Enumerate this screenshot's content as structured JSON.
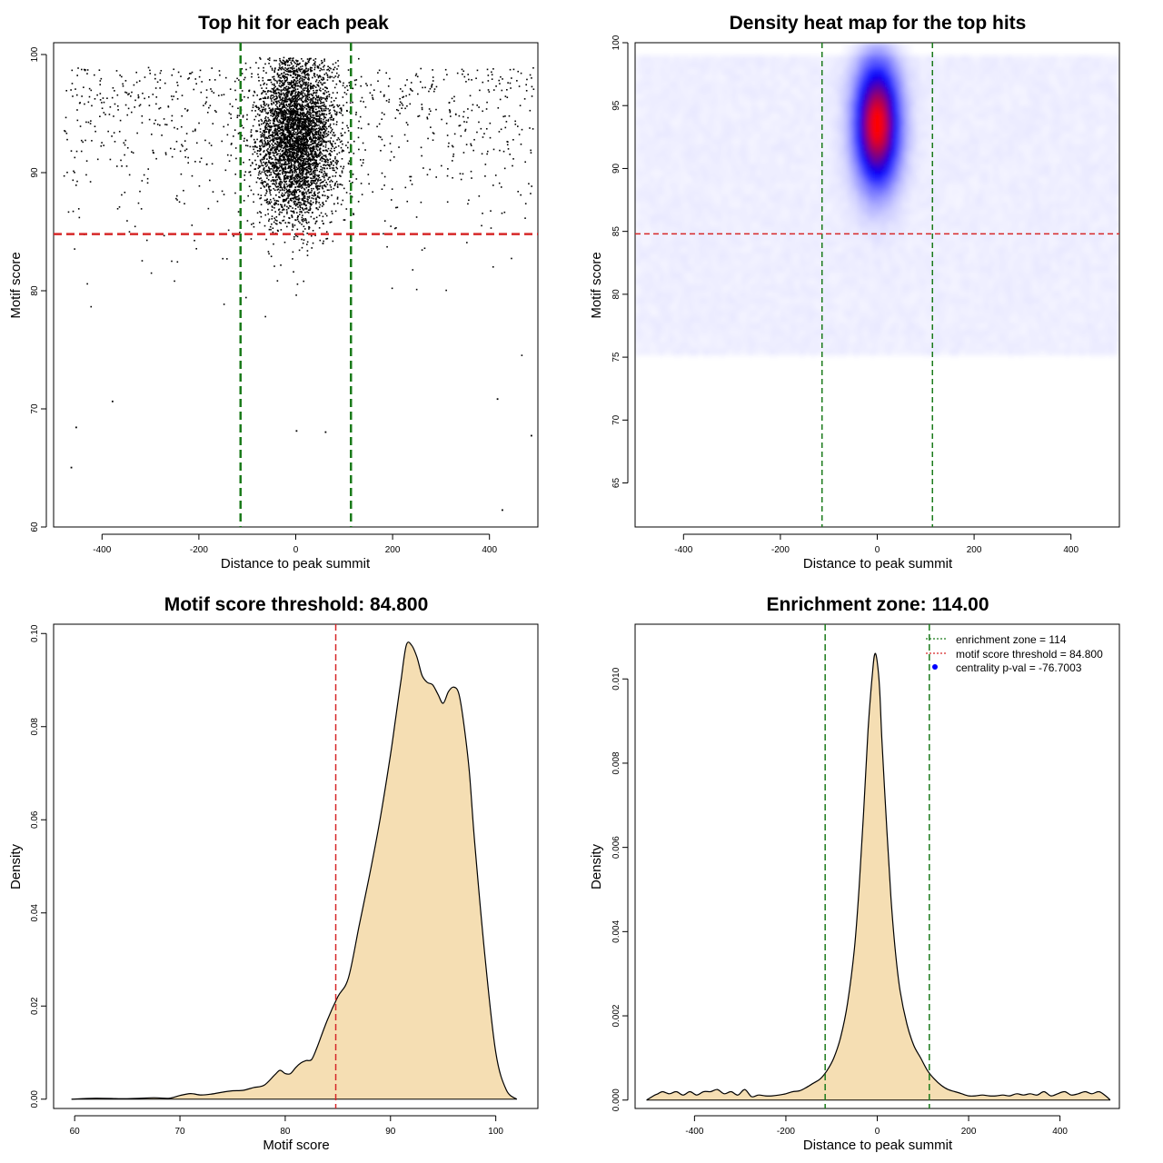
{
  "chart_data": [
    {
      "id": "scatter",
      "type": "scatter",
      "title": "Top hit for each peak",
      "xlabel": "Distance to peak summit",
      "ylabel": "Motif score",
      "xlim": [
        -500,
        500
      ],
      "ylim": [
        60,
        101
      ],
      "xticks": [
        -400,
        -200,
        0,
        200,
        400
      ],
      "yticks": [
        60,
        70,
        80,
        90,
        100
      ],
      "vlines": [
        -114,
        114
      ],
      "hline": 84.8,
      "line_colors": {
        "vertical": "#1a7a1a",
        "horizontal": "#d62728"
      },
      "point_color": "#000000",
      "cluster": {
        "x_center": 0,
        "x_sd": 40,
        "y_center": 93,
        "y_sd": 3.5,
        "n": 4200
      },
      "background": {
        "x_range": [
          -480,
          490
        ],
        "y_range": [
          61.5,
          99
        ],
        "n": 900
      },
      "outliers": [
        {
          "x": -465,
          "y": 65.1
        },
        {
          "x": -455,
          "y": 68.5
        },
        {
          "x": -380,
          "y": 70.7
        },
        {
          "x": 0,
          "y": 68.2
        },
        {
          "x": 60,
          "y": 68.1
        },
        {
          "x": 425,
          "y": 61.5
        },
        {
          "x": 485,
          "y": 67.8
        },
        {
          "x": 415,
          "y": 70.9
        }
      ]
    },
    {
      "id": "heatmap",
      "type": "heatmap",
      "title": "Density heat map for the top hits",
      "xlabel": "Distance to peak summit",
      "ylabel": "Motif score",
      "xlim": [
        -500,
        500
      ],
      "ylim": [
        61.5,
        100
      ],
      "xticks": [
        -400,
        -200,
        0,
        200,
        400
      ],
      "yticks": [
        65,
        70,
        75,
        80,
        85,
        90,
        95,
        100
      ],
      "vlines": [
        -114,
        114
      ],
      "hline": 84.8,
      "line_colors": {
        "vertical": "#1a7a1a",
        "horizontal": "#d62728"
      },
      "palette": [
        "#ffffff",
        "#0000ff",
        "#ff0000"
      ],
      "hotspot": {
        "x_center": 0,
        "x_sd": 30,
        "y_center": 93.5,
        "y_sd": 3.2
      }
    },
    {
      "id": "score_density",
      "type": "area",
      "title": "Motif score threshold: 84.800",
      "xlabel": "Motif score",
      "ylabel": "Density",
      "xlim": [
        58,
        104
      ],
      "ylim": [
        -0.002,
        0.102
      ],
      "xticks": [
        60,
        70,
        80,
        90,
        100
      ],
      "yticks": [
        0.0,
        0.02,
        0.04,
        0.06,
        0.08,
        0.1
      ],
      "ytick_labels": [
        "0.00",
        "0.02",
        "0.04",
        "0.06",
        "0.08",
        "0.10"
      ],
      "vline": 84.8,
      "fill": "#f5deb3",
      "x": [
        59.7,
        62,
        65,
        67.5,
        69,
        70,
        71,
        72,
        73,
        74,
        75,
        76,
        77,
        78,
        79,
        79.5,
        80,
        80.5,
        81,
        81.5,
        82,
        82.5,
        83,
        84,
        85,
        86,
        87,
        88,
        89,
        90,
        90.5,
        91,
        91.5,
        92,
        92.5,
        93,
        93.5,
        94,
        94.5,
        95,
        95.5,
        96,
        96.5,
        97,
        97.5,
        98,
        99,
        100,
        101,
        102
      ],
      "y": [
        0.0,
        0.0002,
        0.0001,
        0.0003,
        0.0002,
        0.0008,
        0.0012,
        0.0009,
        0.0011,
        0.0015,
        0.0018,
        0.0019,
        0.0025,
        0.003,
        0.0052,
        0.0062,
        0.0055,
        0.0055,
        0.0068,
        0.0078,
        0.0083,
        0.0085,
        0.011,
        0.017,
        0.022,
        0.026,
        0.037,
        0.048,
        0.06,
        0.074,
        0.082,
        0.09,
        0.0975,
        0.0975,
        0.095,
        0.091,
        0.0895,
        0.089,
        0.087,
        0.085,
        0.0875,
        0.0885,
        0.087,
        0.08,
        0.07,
        0.055,
        0.03,
        0.01,
        0.002,
        0.0
      ]
    },
    {
      "id": "distance_density",
      "type": "area",
      "title": "Enrichment zone: 114.00",
      "xlabel": "Distance to peak summit",
      "ylabel": "Density",
      "xlim": [
        -530,
        530
      ],
      "ylim": [
        -0.0002,
        0.0113
      ],
      "xticks": [
        -400,
        -200,
        0,
        200,
        400
      ],
      "yticks": [
        0.0,
        0.002,
        0.004,
        0.006,
        0.008,
        0.01
      ],
      "ytick_labels": [
        "0.000",
        "0.002",
        "0.004",
        "0.006",
        "0.008",
        "0.010"
      ],
      "vlines": [
        -114,
        114
      ],
      "fill": "#f5deb3",
      "x": [
        -505,
        -490,
        -480,
        -470,
        -455,
        -440,
        -425,
        -410,
        -395,
        -380,
        -365,
        -350,
        -335,
        -320,
        -305,
        -290,
        -275,
        -260,
        -245,
        -230,
        -215,
        -200,
        -185,
        -170,
        -155,
        -140,
        -125,
        -110,
        -95,
        -80,
        -65,
        -50,
        -40,
        -30,
        -20,
        -10,
        -5,
        0,
        5,
        10,
        20,
        30,
        40,
        50,
        65,
        80,
        95,
        110,
        125,
        140,
        155,
        170,
        185,
        200,
        215,
        230,
        245,
        260,
        275,
        290,
        305,
        320,
        335,
        350,
        365,
        380,
        395,
        410,
        425,
        440,
        455,
        470,
        485,
        500,
        510
      ],
      "y": [
        0.0,
        0.0001,
        0.00015,
        0.0002,
        0.00015,
        0.0002,
        0.00012,
        0.0002,
        0.00012,
        0.0002,
        0.0002,
        0.00025,
        0.00015,
        0.0002,
        0.00012,
        0.00025,
        8e-05,
        0.00012,
        0.0001,
        0.0001,
        0.00012,
        0.00015,
        0.0002,
        0.00022,
        0.0003,
        0.0004,
        0.0005,
        0.0007,
        0.001,
        0.0015,
        0.0023,
        0.0036,
        0.005,
        0.0068,
        0.0088,
        0.0102,
        0.0106,
        0.0104,
        0.0098,
        0.0086,
        0.0066,
        0.0048,
        0.0035,
        0.0026,
        0.0018,
        0.0013,
        0.001,
        0.0007,
        0.0005,
        0.00035,
        0.00025,
        0.0002,
        0.00015,
        0.0001,
        0.0001,
        0.00012,
        0.0001,
        0.0001,
        0.00012,
        0.0001,
        0.00015,
        0.00012,
        0.00015,
        0.00012,
        0.0002,
        0.0001,
        0.00015,
        0.0002,
        0.00012,
        0.00015,
        0.0002,
        0.00015,
        0.0002,
        0.0001,
        0.0
      ]
    }
  ],
  "legend": {
    "entries": [
      {
        "label": "enrichment zone = 114",
        "color": "#1a7a1a",
        "kind": "dotted-line"
      },
      {
        "label": "motif score threshold = 84.800",
        "color": "#d62728",
        "kind": "dotted-line"
      },
      {
        "label": "centrality p-val = -76.7003",
        "color": "#0000ff",
        "kind": "point"
      }
    ]
  }
}
